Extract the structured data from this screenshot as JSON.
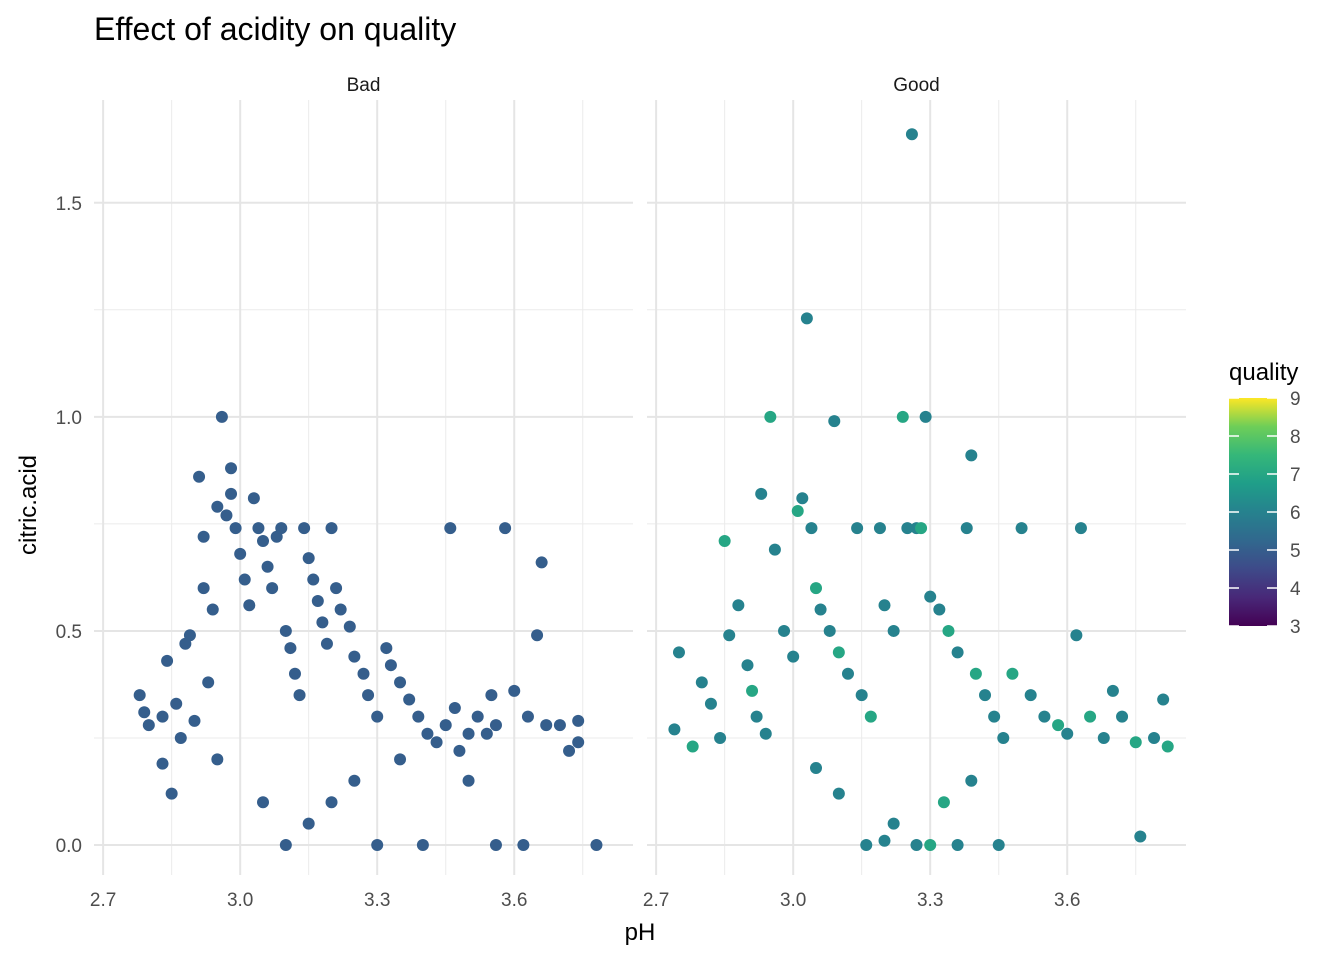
{
  "chart_data": {
    "type": "scatter",
    "title": "Effect of acidity on quality",
    "xlabel": "pH",
    "ylabel": "citric.acid",
    "xlim": [
      2.68,
      3.86
    ],
    "ylim": [
      -0.07,
      1.74
    ],
    "x_ticks": [
      "2.7",
      "3.0",
      "3.3",
      "3.6"
    ],
    "x_tick_values": [
      2.7,
      3.0,
      3.3,
      3.6
    ],
    "y_ticks": [
      "0.0",
      "0.5",
      "1.0",
      "1.5"
    ],
    "y_tick_values": [
      0.0,
      0.5,
      1.0,
      1.5
    ],
    "grid": true,
    "facets": [
      {
        "label": "Bad",
        "points": [
          [
            2.78,
            0.35
          ],
          [
            2.79,
            0.31
          ],
          [
            2.8,
            0.28
          ],
          [
            2.83,
            0.19
          ],
          [
            2.83,
            0.3
          ],
          [
            2.84,
            0.43
          ],
          [
            2.85,
            0.12
          ],
          [
            2.86,
            0.33
          ],
          [
            2.87,
            0.25
          ],
          [
            2.88,
            0.47
          ],
          [
            2.89,
            0.49
          ],
          [
            2.9,
            0.29
          ],
          [
            2.91,
            0.86
          ],
          [
            2.92,
            0.72
          ],
          [
            2.92,
            0.6
          ],
          [
            2.93,
            0.38
          ],
          [
            2.94,
            0.55
          ],
          [
            2.95,
            0.79
          ],
          [
            2.96,
            1.0
          ],
          [
            2.97,
            0.77
          ],
          [
            2.98,
            0.88
          ],
          [
            2.98,
            0.82
          ],
          [
            2.99,
            0.74
          ],
          [
            3.0,
            0.68
          ],
          [
            3.01,
            0.62
          ],
          [
            3.02,
            0.56
          ],
          [
            3.03,
            0.81
          ],
          [
            3.04,
            0.74
          ],
          [
            3.05,
            0.71
          ],
          [
            3.06,
            0.65
          ],
          [
            3.07,
            0.6
          ],
          [
            3.08,
            0.72
          ],
          [
            3.09,
            0.74
          ],
          [
            3.1,
            0.5
          ],
          [
            3.11,
            0.46
          ],
          [
            3.12,
            0.4
          ],
          [
            3.13,
            0.35
          ],
          [
            3.14,
            0.74
          ],
          [
            3.15,
            0.67
          ],
          [
            3.16,
            0.62
          ],
          [
            3.17,
            0.57
          ],
          [
            3.18,
            0.52
          ],
          [
            3.19,
            0.47
          ],
          [
            3.2,
            0.74
          ],
          [
            3.21,
            0.6
          ],
          [
            3.22,
            0.55
          ],
          [
            3.24,
            0.51
          ],
          [
            3.25,
            0.44
          ],
          [
            3.27,
            0.4
          ],
          [
            3.28,
            0.35
          ],
          [
            3.3,
            0.3
          ],
          [
            3.32,
            0.46
          ],
          [
            3.33,
            0.42
          ],
          [
            3.35,
            0.38
          ],
          [
            3.37,
            0.34
          ],
          [
            3.39,
            0.3
          ],
          [
            3.41,
            0.26
          ],
          [
            3.43,
            0.24
          ],
          [
            3.45,
            0.28
          ],
          [
            3.46,
            0.74
          ],
          [
            3.47,
            0.32
          ],
          [
            3.48,
            0.22
          ],
          [
            3.5,
            0.26
          ],
          [
            3.52,
            0.3
          ],
          [
            3.54,
            0.26
          ],
          [
            3.55,
            0.35
          ],
          [
            3.56,
            0.28
          ],
          [
            3.58,
            0.74
          ],
          [
            3.6,
            0.36
          ],
          [
            3.63,
            0.3
          ],
          [
            3.65,
            0.49
          ],
          [
            3.66,
            0.66
          ],
          [
            3.67,
            0.28
          ],
          [
            3.7,
            0.28
          ],
          [
            3.72,
            0.22
          ],
          [
            3.74,
            0.24
          ],
          [
            3.74,
            0.29
          ],
          [
            3.78,
            0.0
          ],
          [
            3.56,
            0.0
          ],
          [
            3.62,
            0.0
          ],
          [
            3.1,
            0.0
          ],
          [
            3.3,
            0.0
          ],
          [
            3.4,
            0.0
          ],
          [
            3.15,
            0.05
          ],
          [
            3.2,
            0.1
          ],
          [
            3.25,
            0.15
          ],
          [
            3.05,
            0.1
          ],
          [
            2.95,
            0.2
          ],
          [
            3.35,
            0.2
          ],
          [
            3.5,
            0.15
          ]
        ]
      },
      {
        "label": "Good",
        "points": [
          [
            2.74,
            0.27
          ],
          [
            2.75,
            0.45
          ],
          [
            2.78,
            0.23
          ],
          [
            2.8,
            0.38
          ],
          [
            2.82,
            0.33
          ],
          [
            2.84,
            0.25
          ],
          [
            2.85,
            0.71
          ],
          [
            2.86,
            0.49
          ],
          [
            2.88,
            0.56
          ],
          [
            2.9,
            0.42
          ],
          [
            2.91,
            0.36
          ],
          [
            2.92,
            0.3
          ],
          [
            2.93,
            0.82
          ],
          [
            2.94,
            0.26
          ],
          [
            2.95,
            1.0
          ],
          [
            2.96,
            0.69
          ],
          [
            2.98,
            0.5
          ],
          [
            3.0,
            0.44
          ],
          [
            3.01,
            0.78
          ],
          [
            3.02,
            0.81
          ],
          [
            3.03,
            1.23
          ],
          [
            3.04,
            0.74
          ],
          [
            3.05,
            0.6
          ],
          [
            3.06,
            0.55
          ],
          [
            3.08,
            0.5
          ],
          [
            3.09,
            0.99
          ],
          [
            3.1,
            0.45
          ],
          [
            3.12,
            0.4
          ],
          [
            3.14,
            0.74
          ],
          [
            3.15,
            0.35
          ],
          [
            3.17,
            0.3
          ],
          [
            3.19,
            0.74
          ],
          [
            3.2,
            0.56
          ],
          [
            3.22,
            0.5
          ],
          [
            3.24,
            1.0
          ],
          [
            3.25,
            0.74
          ],
          [
            3.26,
            1.66
          ],
          [
            3.27,
            0.74
          ],
          [
            3.28,
            0.74
          ],
          [
            3.29,
            1.0
          ],
          [
            3.3,
            0.58
          ],
          [
            3.32,
            0.55
          ],
          [
            3.34,
            0.5
          ],
          [
            3.36,
            0.45
          ],
          [
            3.38,
            0.74
          ],
          [
            3.39,
            0.91
          ],
          [
            3.4,
            0.4
          ],
          [
            3.42,
            0.35
          ],
          [
            3.44,
            0.3
          ],
          [
            3.46,
            0.25
          ],
          [
            3.48,
            0.4
          ],
          [
            3.5,
            0.74
          ],
          [
            3.52,
            0.35
          ],
          [
            3.55,
            0.3
          ],
          [
            3.58,
            0.28
          ],
          [
            3.6,
            0.26
          ],
          [
            3.62,
            0.49
          ],
          [
            3.63,
            0.74
          ],
          [
            3.65,
            0.3
          ],
          [
            3.68,
            0.25
          ],
          [
            3.7,
            0.36
          ],
          [
            3.72,
            0.3
          ],
          [
            3.75,
            0.24
          ],
          [
            3.76,
            0.02
          ],
          [
            3.79,
            0.25
          ],
          [
            3.81,
            0.34
          ],
          [
            3.82,
            0.23
          ],
          [
            3.2,
            0.01
          ],
          [
            3.27,
            0.0
          ],
          [
            3.16,
            0.0
          ],
          [
            3.3,
            0.0
          ],
          [
            3.36,
            0.0
          ],
          [
            3.45,
            0.0
          ],
          [
            3.22,
            0.05
          ],
          [
            3.33,
            0.1
          ],
          [
            3.39,
            0.15
          ],
          [
            3.1,
            0.12
          ],
          [
            3.05,
            0.18
          ]
        ]
      }
    ],
    "legend": {
      "title": "quality",
      "placement": "right",
      "labels": [
        "9",
        "8",
        "7",
        "6",
        "5",
        "4",
        "3"
      ],
      "min": 3,
      "max": 9
    }
  }
}
